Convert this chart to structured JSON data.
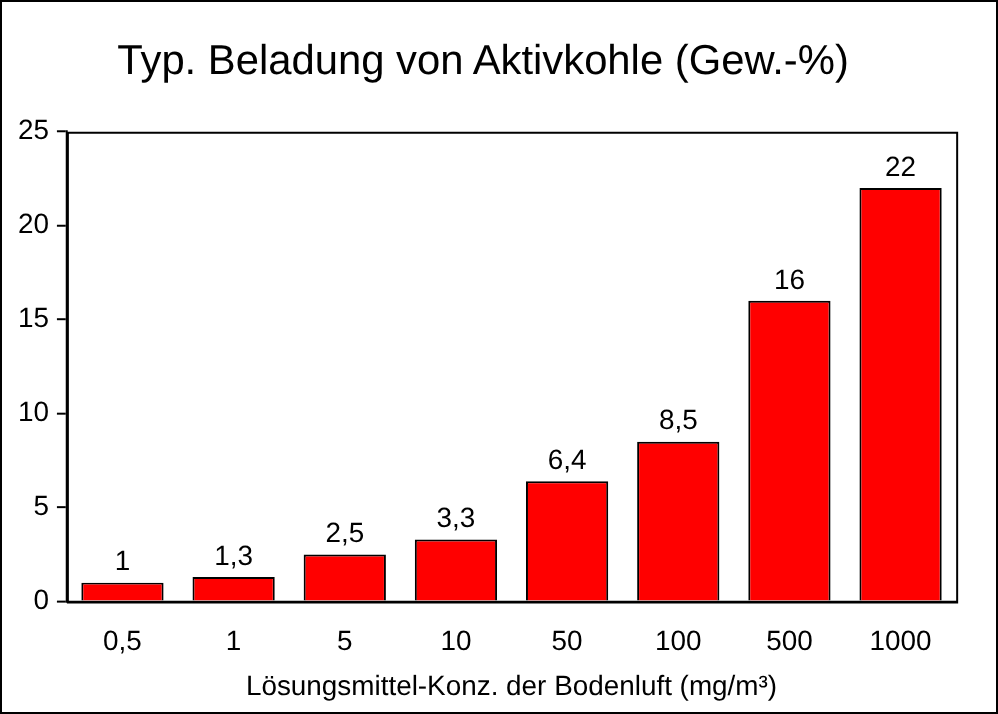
{
  "chart_data": {
    "type": "bar",
    "title": "Typ. Beladung von Aktivkohle (Gew.-%)",
    "xlabel": "Lösungsmittel-Konz. der Bodenluft (mg/m³)",
    "categories": [
      "0,5",
      "1",
      "5",
      "10",
      "50",
      "100",
      "500",
      "1000"
    ],
    "values": [
      1,
      1.3,
      2.5,
      3.3,
      6.4,
      8.5,
      16,
      22
    ],
    "value_labels": [
      "1",
      "1,3",
      "2,5",
      "3,3",
      "6,4",
      "8,5",
      "16",
      "22"
    ],
    "color": "#ff0000",
    "ylim": [
      0,
      25
    ],
    "yticks": [
      0,
      5,
      10,
      15,
      20,
      25
    ],
    "grid": false,
    "legend": false
  }
}
